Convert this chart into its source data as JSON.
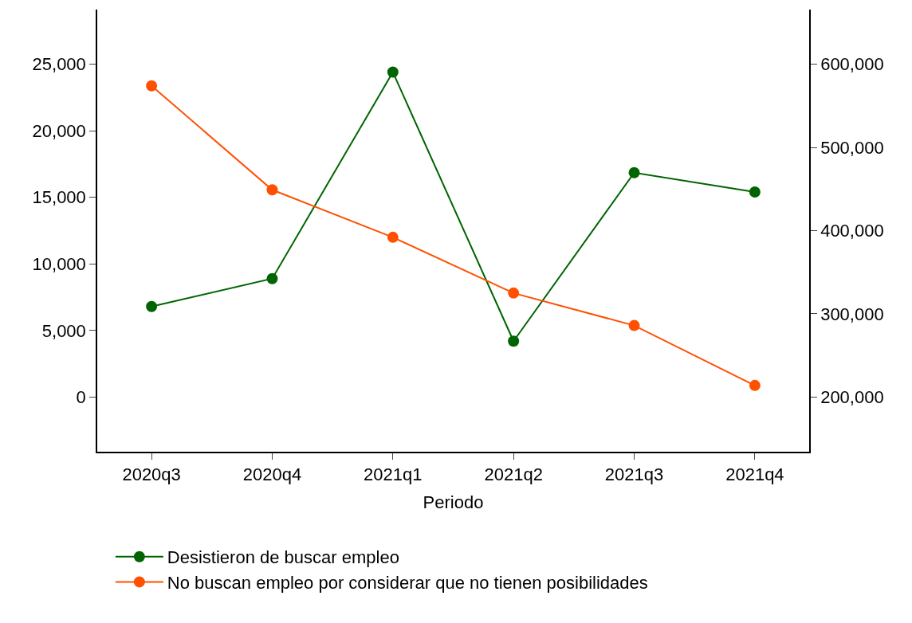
{
  "chart_data": {
    "type": "line",
    "xlabel": "Periodo",
    "categories": [
      "2020q3",
      "2020q4",
      "2021q1",
      "2021q2",
      "2021q3",
      "2021q4"
    ],
    "series": [
      {
        "name": "Desistieron de buscar empleo",
        "color": "#006400",
        "values": [
          6800,
          8900,
          24400,
          4200,
          16850,
          15400
        ]
      },
      {
        "name": "No buscan empleo por considerar que no tienen posibilidades",
        "color": "#ff5000",
        "axis": "y2",
        "values": [
          574000,
          449000,
          392000,
          325000,
          286000,
          214000
        ]
      }
    ],
    "ylim": [
      -4100,
      29100
    ],
    "yticks": [
      {
        "value": 0,
        "label": "0"
      },
      {
        "value": 5000,
        "label": "5,000"
      },
      {
        "value": 10000,
        "label": "10,000"
      },
      {
        "value": 15000,
        "label": "15,000"
      },
      {
        "value": 20000,
        "label": "20,000"
      },
      {
        "value": 25000,
        "label": "25,000"
      }
    ],
    "y2lim": [
      134400,
      665600
    ],
    "y2ticks": [
      {
        "value": 200000,
        "label": "200,000"
      },
      {
        "value": 300000,
        "label": "300,000"
      },
      {
        "value": 400000,
        "label": "400,000"
      },
      {
        "value": 500000,
        "label": "500,000"
      },
      {
        "value": 600000,
        "label": "600,000"
      }
    ],
    "legend": "bottom",
    "marker": "circle",
    "line_style": "solid"
  }
}
